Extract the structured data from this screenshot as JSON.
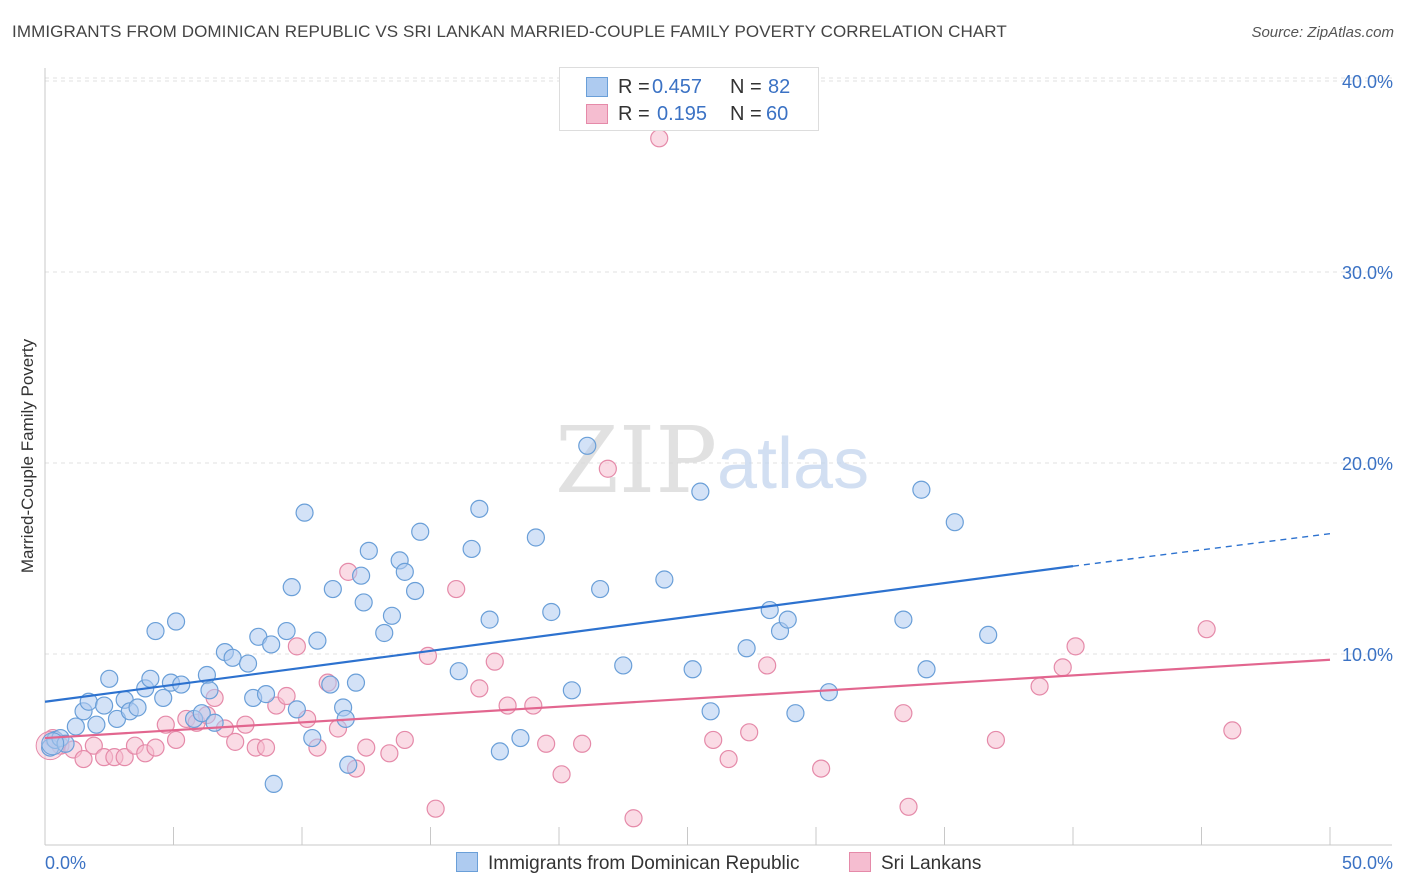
{
  "title": "IMMIGRANTS FROM DOMINICAN REPUBLIC VS SRI LANKAN MARRIED-COUPLE FAMILY POVERTY CORRELATION CHART",
  "source": "Source: ZipAtlas.com",
  "watermark": {
    "zip": "ZIP",
    "atlas": "atlas"
  },
  "colors": {
    "blue_fill": "#aecbf0",
    "blue_stroke": "#6a9fd8",
    "blue_line": "#2d72cf",
    "pink_fill": "#f5bdd0",
    "pink_stroke": "#e58aa9",
    "pink_line": "#e2668f",
    "tick_label": "#3b72c4"
  },
  "legend": {
    "blue": {
      "r_label": "R =",
      "r_value": "0.457",
      "n_label": "N =",
      "n_value": "82"
    },
    "pink": {
      "r_label": "R =",
      "r_value": "0.195",
      "n_label": "N =",
      "n_value": "60"
    }
  },
  "chart_data": {
    "type": "scatter",
    "title": "IMMIGRANTS FROM DOMINICAN REPUBLIC VS SRI LANKAN MARRIED-COUPLE FAMILY POVERTY CORRELATION CHART",
    "xlabel": "",
    "ylabel": "Married-Couple Family Poverty",
    "xlim": [
      0,
      50
    ],
    "ylim": [
      0,
      41
    ],
    "x_tick_labels": [
      "0.0%",
      "50.0%"
    ],
    "y_ticks": [
      10,
      20,
      30,
      40
    ],
    "y_tick_labels": [
      "10.0%",
      "20.0%",
      "30.0%",
      "40.0%"
    ],
    "grid": "horizontal dashed",
    "legend_position": "top-center",
    "series": [
      {
        "name": "Immigrants from Dominican Republic",
        "color": "#aecbf0",
        "trend": {
          "x": [
            0,
            40
          ],
          "y": [
            7.5,
            14.6
          ],
          "dashed_to": [
            50,
            16.3
          ]
        },
        "points": [
          [
            0.2,
            5.1
          ],
          [
            0.4,
            5.5
          ],
          [
            0.6,
            5.6
          ],
          [
            0.8,
            5.3
          ],
          [
            1.2,
            6.2
          ],
          [
            1.5,
            7.0
          ],
          [
            1.7,
            7.5
          ],
          [
            2.0,
            6.3
          ],
          [
            2.3,
            7.3
          ],
          [
            2.5,
            8.7
          ],
          [
            2.8,
            6.6
          ],
          [
            3.1,
            7.6
          ],
          [
            3.3,
            7.0
          ],
          [
            3.6,
            7.2
          ],
          [
            3.9,
            8.2
          ],
          [
            4.1,
            8.7
          ],
          [
            4.3,
            11.2
          ],
          [
            4.6,
            7.7
          ],
          [
            4.9,
            8.5
          ],
          [
            5.1,
            11.7
          ],
          [
            5.3,
            8.4
          ],
          [
            5.8,
            6.6
          ],
          [
            6.1,
            6.9
          ],
          [
            6.3,
            8.9
          ],
          [
            6.4,
            8.1
          ],
          [
            6.6,
            6.4
          ],
          [
            7.0,
            10.1
          ],
          [
            7.3,
            9.8
          ],
          [
            7.9,
            9.5
          ],
          [
            8.1,
            7.7
          ],
          [
            8.3,
            10.9
          ],
          [
            8.6,
            7.9
          ],
          [
            8.8,
            10.5
          ],
          [
            8.9,
            3.2
          ],
          [
            9.4,
            11.2
          ],
          [
            9.6,
            13.5
          ],
          [
            9.8,
            7.1
          ],
          [
            10.1,
            17.4
          ],
          [
            10.4,
            5.6
          ],
          [
            10.6,
            10.7
          ],
          [
            11.1,
            8.4
          ],
          [
            11.2,
            13.4
          ],
          [
            11.6,
            7.2
          ],
          [
            11.7,
            6.6
          ],
          [
            11.8,
            4.2
          ],
          [
            12.1,
            8.5
          ],
          [
            12.3,
            14.1
          ],
          [
            12.4,
            12.7
          ],
          [
            12.6,
            15.4
          ],
          [
            13.2,
            11.1
          ],
          [
            13.5,
            12.0
          ],
          [
            13.8,
            14.9
          ],
          [
            14.0,
            14.3
          ],
          [
            14.4,
            13.3
          ],
          [
            14.6,
            16.4
          ],
          [
            16.1,
            9.1
          ],
          [
            16.6,
            15.5
          ],
          [
            16.9,
            17.6
          ],
          [
            17.3,
            11.8
          ],
          [
            17.7,
            4.9
          ],
          [
            18.5,
            5.6
          ],
          [
            19.1,
            16.1
          ],
          [
            19.7,
            12.2
          ],
          [
            20.5,
            8.1
          ],
          [
            21.1,
            20.9
          ],
          [
            21.6,
            13.4
          ],
          [
            22.5,
            9.4
          ],
          [
            24.1,
            13.9
          ],
          [
            25.2,
            9.2
          ],
          [
            25.5,
            18.5
          ],
          [
            25.9,
            7.0
          ],
          [
            27.3,
            10.3
          ],
          [
            28.2,
            12.3
          ],
          [
            28.6,
            11.2
          ],
          [
            28.9,
            11.8
          ],
          [
            29.2,
            6.9
          ],
          [
            30.5,
            8.0
          ],
          [
            33.4,
            11.8
          ],
          [
            34.1,
            18.6
          ],
          [
            34.3,
            9.2
          ],
          [
            35.4,
            16.9
          ],
          [
            36.7,
            11.0
          ]
        ]
      },
      {
        "name": "Sri Lankans",
        "color": "#f5bdd0",
        "trend": {
          "x": [
            0,
            50
          ],
          "y": [
            5.6,
            9.7
          ]
        },
        "points": [
          [
            0.3,
            5.6
          ],
          [
            0.6,
            5.2
          ],
          [
            1.1,
            5.0
          ],
          [
            1.5,
            4.5
          ],
          [
            1.9,
            5.2
          ],
          [
            2.3,
            4.6
          ],
          [
            2.7,
            4.6
          ],
          [
            3.1,
            4.6
          ],
          [
            3.5,
            5.2
          ],
          [
            3.9,
            4.8
          ],
          [
            4.3,
            5.1
          ],
          [
            4.7,
            6.3
          ],
          [
            5.1,
            5.5
          ],
          [
            5.5,
            6.6
          ],
          [
            5.9,
            6.4
          ],
          [
            6.3,
            6.8
          ],
          [
            6.6,
            7.7
          ],
          [
            7.0,
            6.1
          ],
          [
            7.4,
            5.4
          ],
          [
            7.8,
            6.3
          ],
          [
            8.2,
            5.1
          ],
          [
            8.6,
            5.1
          ],
          [
            9.0,
            7.3
          ],
          [
            9.4,
            7.8
          ],
          [
            9.8,
            10.4
          ],
          [
            10.2,
            6.6
          ],
          [
            10.6,
            5.1
          ],
          [
            11.0,
            8.5
          ],
          [
            11.4,
            6.1
          ],
          [
            11.8,
            14.3
          ],
          [
            12.1,
            4.0
          ],
          [
            12.5,
            5.1
          ],
          [
            13.4,
            4.8
          ],
          [
            14.0,
            5.5
          ],
          [
            14.9,
            9.9
          ],
          [
            15.2,
            1.9
          ],
          [
            16.0,
            13.4
          ],
          [
            16.9,
            8.2
          ],
          [
            17.5,
            9.6
          ],
          [
            18.0,
            7.3
          ],
          [
            19.0,
            7.3
          ],
          [
            19.5,
            5.3
          ],
          [
            20.1,
            3.7
          ],
          [
            20.9,
            5.3
          ],
          [
            21.9,
            19.7
          ],
          [
            22.9,
            1.4
          ],
          [
            23.9,
            37.0
          ],
          [
            26.0,
            5.5
          ],
          [
            26.6,
            4.5
          ],
          [
            27.4,
            5.9
          ],
          [
            28.1,
            9.4
          ],
          [
            30.2,
            4.0
          ],
          [
            33.4,
            6.9
          ],
          [
            33.6,
            2.0
          ],
          [
            37.0,
            5.5
          ],
          [
            38.7,
            8.3
          ],
          [
            39.6,
            9.3
          ],
          [
            40.1,
            10.4
          ],
          [
            45.2,
            11.3
          ],
          [
            46.2,
            6.0
          ]
        ]
      }
    ]
  },
  "bottom_legend": {
    "blue_label": "Immigrants from Dominican Republic",
    "pink_label": "Sri Lankans"
  }
}
